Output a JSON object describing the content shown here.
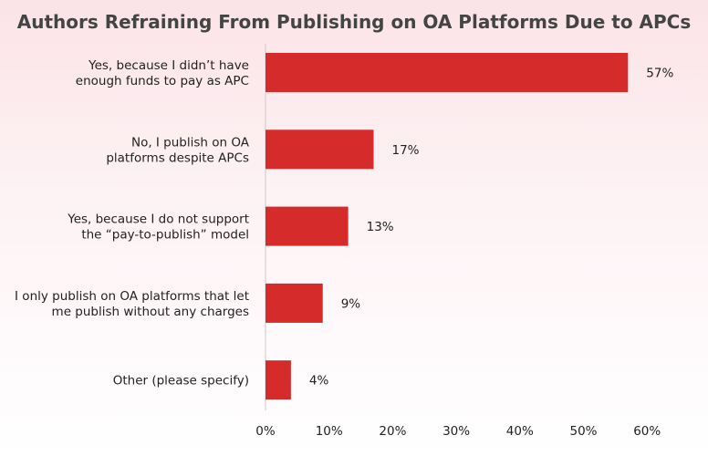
{
  "chart_data": {
    "type": "bar",
    "orientation": "horizontal",
    "title": "Authors Refraining From Publishing on OA Platforms Due to APCs",
    "categories": [
      [
        "Yes, because I didn’t have",
        "enough funds to pay as APC"
      ],
      [
        "No, I publish on OA",
        "platforms despite APCs"
      ],
      [
        "Yes, because I do not support",
        "the “pay-to-publish” model"
      ],
      [
        "I only publish on OA platforms that let",
        "me publish without any charges"
      ],
      [
        "Other (please specify)"
      ]
    ],
    "values": [
      57,
      17,
      13,
      9,
      4
    ],
    "value_labels": [
      "57%",
      "17%",
      "13%",
      "9%",
      "4%"
    ],
    "xlim": [
      0,
      60
    ],
    "xticks": [
      "0%",
      "10%",
      "20%",
      "30%",
      "40%",
      "50%",
      "60%"
    ],
    "grid": false,
    "bar_color": "#d62b2b"
  }
}
